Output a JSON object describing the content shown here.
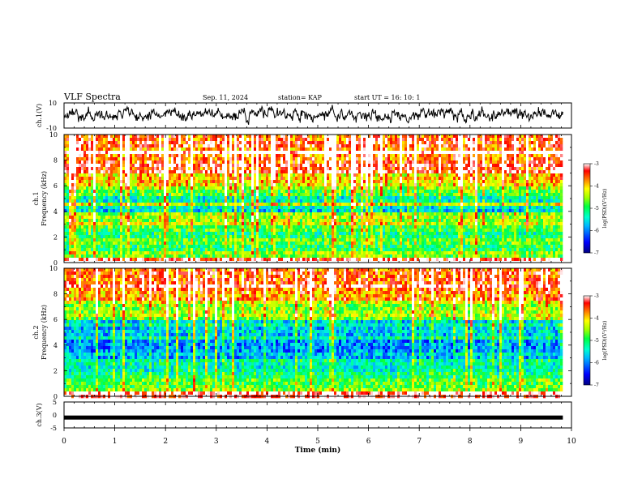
{
  "header": {
    "title": "VLF Spectra",
    "date": "Sep. 11, 2024",
    "station": "station= KAP",
    "start": "start  UT =   16: 10: 1"
  },
  "chart_data": [
    {
      "type": "line",
      "panel": "ch1-waveform",
      "ylabel": "ch.1(V)",
      "ylim": [
        -10,
        10
      ],
      "ytick_labels": [
        "10",
        "-10"
      ],
      "xlim": [
        0,
        10
      ],
      "data_extent_min": [
        0,
        9.83
      ],
      "color": "#000000"
    },
    {
      "type": "heatmap",
      "panel": "ch1-spectrogram",
      "ylabel_line1": "ch.1",
      "ylabel_line2": "Frequency (kHz)",
      "ylim": [
        0,
        10
      ],
      "ytick_labels": [
        "0",
        "2",
        "4",
        "6",
        "8",
        "10"
      ],
      "xlim": [
        0,
        10
      ],
      "data_extent_min": [
        0,
        9.83
      ],
      "colorbar": {
        "label": "log(PSD)(V²/Hz)",
        "range": [
          -7,
          -3
        ],
        "tick_labels": [
          "-3",
          "-4",
          "-5",
          "-6",
          "-7"
        ]
      },
      "approx_profile_log_psd": [
        {
          "f_khz": [
            0,
            0.3
          ],
          "level": -3.2
        },
        {
          "f_khz": [
            0.3,
            1.0
          ],
          "level": -4.8
        },
        {
          "f_khz": [
            1.0,
            3.0
          ],
          "level": -5.0
        },
        {
          "f_khz": [
            3.0,
            3.8
          ],
          "level": -4.5
        },
        {
          "f_khz": [
            3.8,
            4.5
          ],
          "level": -5.8
        },
        {
          "f_khz": [
            4.5,
            5.2
          ],
          "level": -5.4
        },
        {
          "f_khz": [
            5.2,
            6.0
          ],
          "level": -4.8
        },
        {
          "f_khz": [
            6.0,
            7.0
          ],
          "level": -4.2
        },
        {
          "f_khz": [
            7.0,
            10.0
          ],
          "level": -3.6
        }
      ]
    },
    {
      "type": "heatmap",
      "panel": "ch2-spectrogram",
      "ylabel_line1": "ch.2",
      "ylabel_line2": "Frequency (kHz)",
      "ylim": [
        0,
        10
      ],
      "ytick_labels": [
        "0",
        "2",
        "4",
        "6",
        "8",
        "10"
      ],
      "xlim": [
        0,
        10
      ],
      "data_extent_min": [
        0,
        9.83
      ],
      "colorbar": {
        "label": "log(PSD)(V²/Hz)",
        "range": [
          -7,
          -3
        ],
        "tick_labels": [
          "-3",
          "-4",
          "-5",
          "-6",
          "-7"
        ]
      },
      "approx_profile_log_psd": [
        {
          "f_khz": [
            0,
            0.3
          ],
          "level": -3.2
        },
        {
          "f_khz": [
            0.3,
            1.0
          ],
          "level": -4.8
        },
        {
          "f_khz": [
            1.0,
            2.0
          ],
          "level": -5.0
        },
        {
          "f_khz": [
            2.0,
            3.0
          ],
          "level": -5.3
        },
        {
          "f_khz": [
            3.0,
            4.5
          ],
          "level": -5.9
        },
        {
          "f_khz": [
            4.5,
            6.0
          ],
          "level": -5.6
        },
        {
          "f_khz": [
            6.0,
            7.5
          ],
          "level": -4.6
        },
        {
          "f_khz": [
            7.5,
            10.0
          ],
          "level": -3.8
        }
      ]
    },
    {
      "type": "line",
      "panel": "ch3-waveform",
      "ylabel": "ch.3(V)",
      "ylim": [
        -5,
        5
      ],
      "ytick_labels": [
        "5",
        "0",
        "-5"
      ],
      "xlim": [
        0,
        10
      ],
      "data_extent_min": [
        0,
        9.83
      ],
      "approx_value_v": -1.0,
      "color": "#000000"
    }
  ],
  "time_axis": {
    "xlabel": "Time (min)",
    "xlim": [
      0,
      10
    ],
    "tick_labels": [
      "0",
      "1",
      "2",
      "3",
      "4",
      "5",
      "6",
      "7",
      "8",
      "9",
      "10"
    ]
  }
}
